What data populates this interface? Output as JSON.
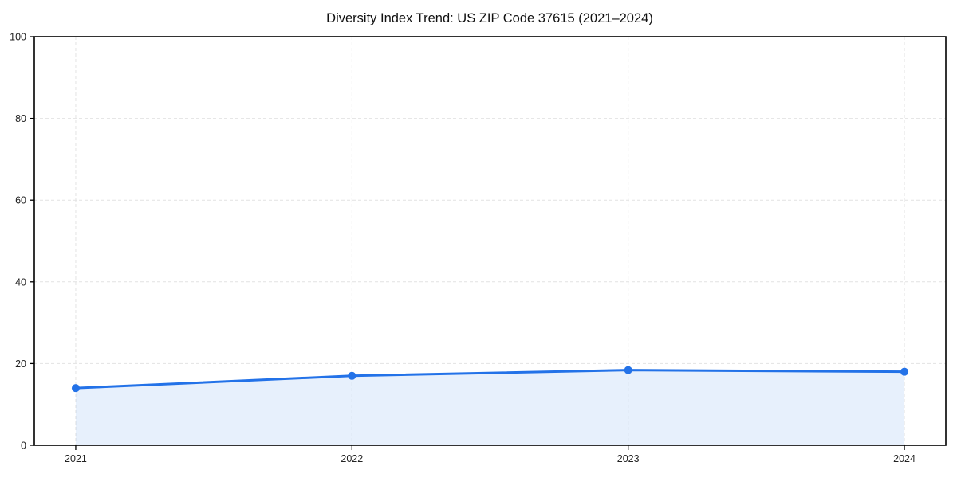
{
  "chart_data": {
    "type": "area",
    "title": "Diversity Index Trend: US ZIP Code 37615 (2021–2024)",
    "xlabel": "",
    "ylabel": "",
    "x": [
      2021,
      2022,
      2023,
      2024
    ],
    "categories": [
      "2021",
      "2022",
      "2023",
      "2024"
    ],
    "values": [
      14.0,
      17.0,
      18.4,
      18.0
    ],
    "y_ticks": [
      0,
      20,
      40,
      60,
      80,
      100
    ],
    "y_tick_labels": [
      "0",
      "20",
      "40",
      "60",
      "80",
      "100"
    ],
    "ylim": [
      0,
      100
    ],
    "xlim": [
      2020.85,
      2024.15
    ],
    "grid": true,
    "grid_style": "dashed",
    "legend": false,
    "colors": {
      "line": "#2372e8",
      "marker": "#2372e8",
      "fill": "#2372e8",
      "fill_opacity": 0.11,
      "grid": "#e2e2e2",
      "spine": "#000000",
      "title_text": "#111111",
      "tick_text": "#222222",
      "background": "#ffffff"
    }
  }
}
